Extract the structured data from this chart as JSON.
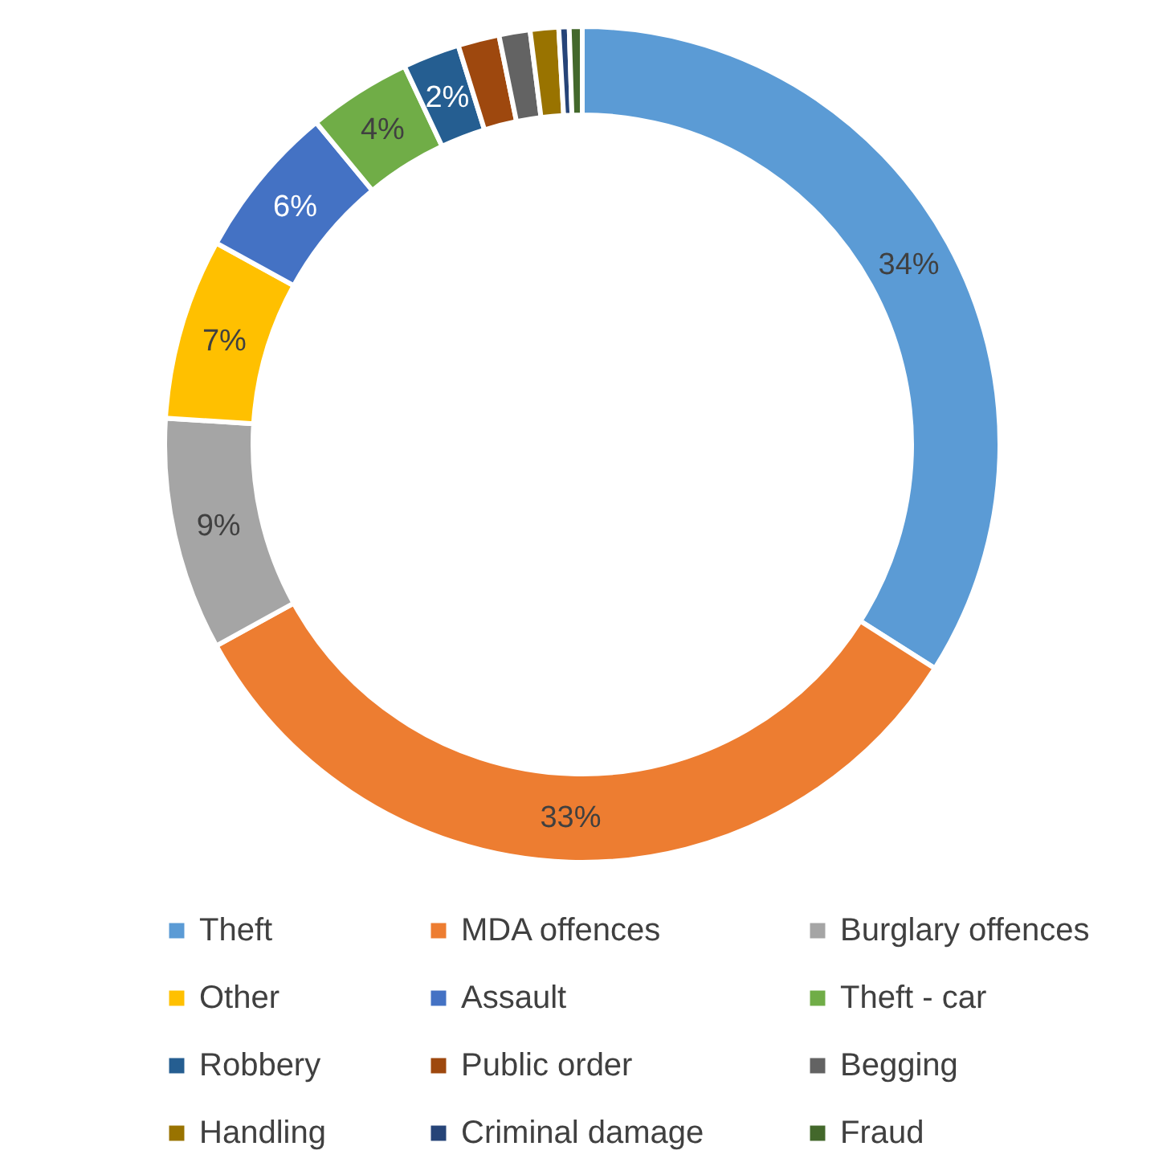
{
  "chart_data": {
    "type": "donut",
    "categories": [
      "Theft",
      "MDA offences",
      "Burglary offences",
      "Other",
      "Assault",
      "Theft - car",
      "Robbery",
      "Public order",
      "Begging",
      "Handling",
      "Criminal damage",
      "Fraud"
    ],
    "values": [
      34,
      33,
      9,
      7,
      6,
      4,
      2.2,
      1.6,
      1.2,
      1.1,
      0.4,
      0.5
    ],
    "colors": [
      "#5b9bd5",
      "#ed7d31",
      "#a5a5a5",
      "#ffc000",
      "#4472c4",
      "#70ad47",
      "#255e91",
      "#9e480e",
      "#636363",
      "#997300",
      "#264478",
      "#43682b"
    ],
    "value_labels": [
      "34%",
      "33%",
      "9%",
      "7%",
      "6%",
      "4%",
      "2%",
      null,
      null,
      null,
      null,
      null
    ],
    "legend": "bottom"
  }
}
